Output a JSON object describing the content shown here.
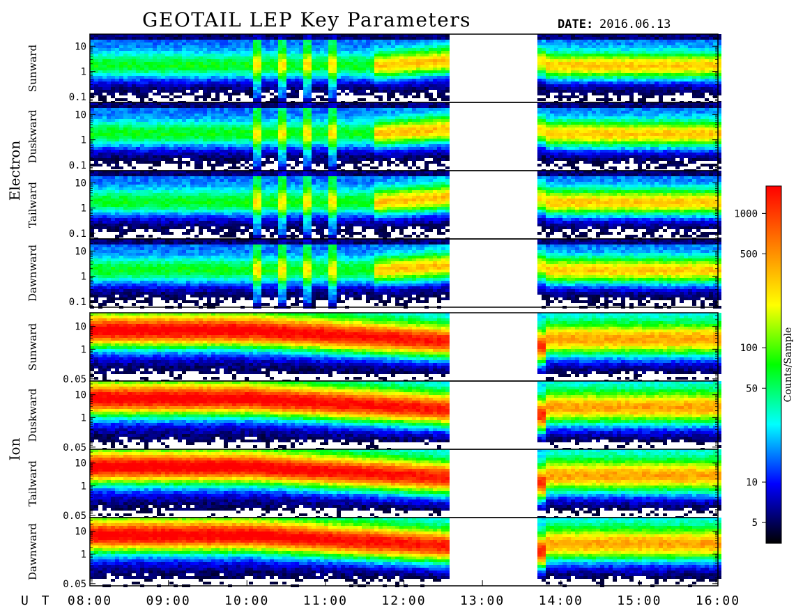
{
  "title": "GEOTAIL LEP Key Parameters",
  "date_label": "DATE:",
  "date_value": "2016.06.13",
  "ut_label": "U T",
  "groups": [
    {
      "name": "Electron"
    },
    {
      "name": "Ion"
    }
  ],
  "colorbar": {
    "label": "Counts/Sample",
    "scale": "log",
    "range": [
      3.5,
      1600
    ],
    "ticks": [
      "1000",
      "500",
      "100",
      "50",
      "10",
      "5"
    ],
    "tick_values": [
      1000,
      500,
      100,
      50,
      10,
      5
    ],
    "colors": [
      "#000000",
      "#0000ff",
      "#00ffff",
      "#00ff00",
      "#ffff00",
      "#ff7f00",
      "#ff0000"
    ]
  },
  "chart_data": {
    "type": "heatmap",
    "x_axis": {
      "label": "U T",
      "range": [
        "08:00",
        "16:00"
      ],
      "ticks": [
        "08:00",
        "09:00",
        "10:00",
        "11:00",
        "12:00",
        "13:00",
        "14:00",
        "15:00",
        "16:00"
      ]
    },
    "data_gap": [
      "12:35",
      "13:40"
    ],
    "panels": [
      {
        "group": "Electron",
        "direction": "Sunward",
        "y_scale": "log",
        "y_ticks": [
          "10",
          "1",
          "0.1"
        ],
        "y_range": [
          0.06,
          30
        ]
      },
      {
        "group": "Electron",
        "direction": "Duskward",
        "y_scale": "log",
        "y_ticks": [
          "10",
          "1",
          "0.1"
        ],
        "y_range": [
          0.06,
          30
        ]
      },
      {
        "group": "Electron",
        "direction": "Tailward",
        "y_scale": "log",
        "y_ticks": [
          "10",
          "1",
          "0.1"
        ],
        "y_range": [
          0.06,
          30
        ]
      },
      {
        "group": "Electron",
        "direction": "Dawnward",
        "y_scale": "log",
        "y_ticks": [
          "10",
          "1",
          "0.1"
        ],
        "y_range": [
          0.06,
          30
        ]
      },
      {
        "group": "Ion",
        "direction": "Sunward",
        "y_scale": "log",
        "y_ticks": [
          "10",
          "1",
          "0.05"
        ],
        "y_range": [
          0.04,
          40
        ]
      },
      {
        "group": "Ion",
        "direction": "Duskward",
        "y_scale": "log",
        "y_ticks": [
          "10",
          "1",
          "0.05"
        ],
        "y_range": [
          0.04,
          40
        ]
      },
      {
        "group": "Ion",
        "direction": "Tailward",
        "y_scale": "log",
        "y_ticks": [
          "10",
          "1",
          "0.05"
        ],
        "y_range": [
          0.04,
          40
        ]
      },
      {
        "group": "Ion",
        "direction": "Dawnward",
        "y_scale": "log",
        "y_ticks": [
          "10",
          "1",
          "0.05"
        ],
        "y_range": [
          0.04,
          40
        ]
      }
    ]
  }
}
